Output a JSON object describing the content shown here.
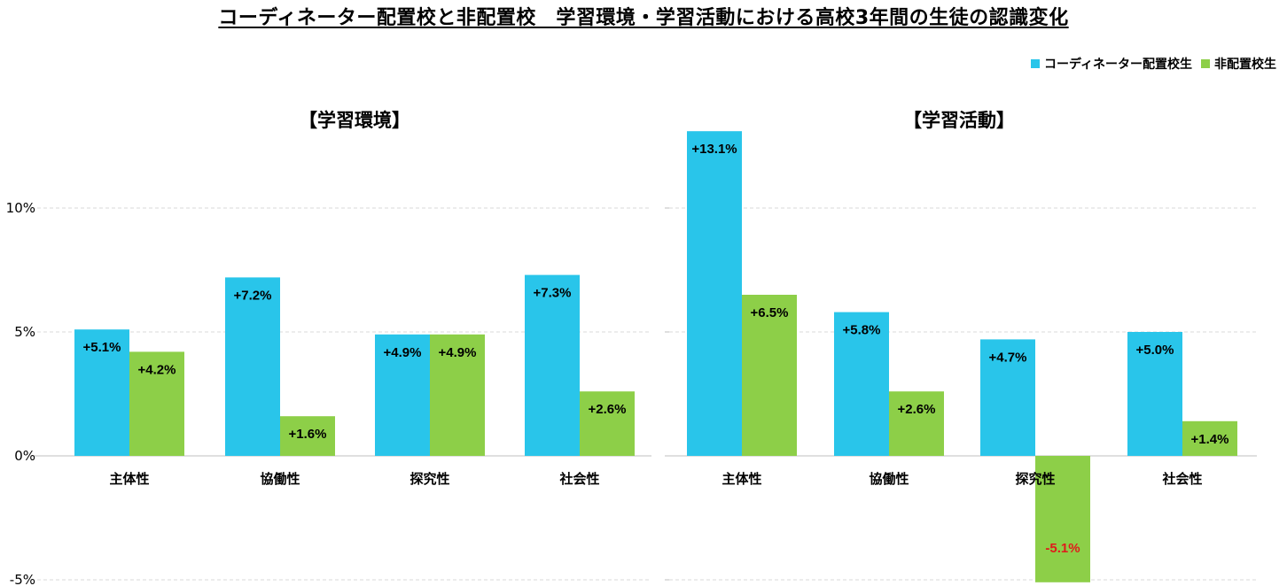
{
  "title": "コーディネーター配置校と非配置校　学習環境・学習活動における高校3年間の生徒の認識変化",
  "legend": [
    {
      "label": "コーディネーター配置校生",
      "color": "#29C5EA"
    },
    {
      "label": "非配置校生",
      "color": "#8DCF48"
    }
  ],
  "colors": {
    "series1": "#29C5EA",
    "series2": "#8DCF48",
    "negative_label": "#E01B1B",
    "grid": "#D9D9D9"
  },
  "chart_data": [
    {
      "type": "bar",
      "title": "【学習環境】",
      "categories": [
        "主体性",
        "協働性",
        "探究性",
        "社会性"
      ],
      "series": [
        {
          "name": "コーディネーター配置校生",
          "values": [
            5.1,
            7.2,
            4.9,
            7.3
          ],
          "labels": [
            "+5.1%",
            "+7.2%",
            "+4.9%",
            "+7.3%"
          ]
        },
        {
          "name": "非配置校生",
          "values": [
            4.2,
            1.6,
            4.9,
            2.6
          ],
          "labels": [
            "+4.2%",
            "+1.6%",
            "+4.9%",
            "+2.6%"
          ]
        }
      ],
      "ylim": [
        -5,
        15
      ],
      "yticks": [
        -5,
        0,
        5,
        10
      ],
      "ytick_labels": [
        "-5%",
        "0%",
        "5%",
        "10%"
      ],
      "grid": true
    },
    {
      "type": "bar",
      "title": "【学習活動】",
      "categories": [
        "主体性",
        "協働性",
        "探究性",
        "社会性"
      ],
      "series": [
        {
          "name": "コーディネーター配置校生",
          "values": [
            13.1,
            5.8,
            4.7,
            5.0
          ],
          "labels": [
            "+13.1%",
            "+5.8%",
            "+4.7%",
            "+5.0%"
          ]
        },
        {
          "name": "非配置校生",
          "values": [
            6.5,
            2.6,
            -5.1,
            1.4
          ],
          "labels": [
            "+6.5%",
            "+2.6%",
            "-5.1%",
            "+1.4%"
          ]
        }
      ],
      "ylim": [
        -5,
        15
      ],
      "yticks": [
        -5,
        0,
        5,
        10
      ],
      "grid": true
    }
  ]
}
